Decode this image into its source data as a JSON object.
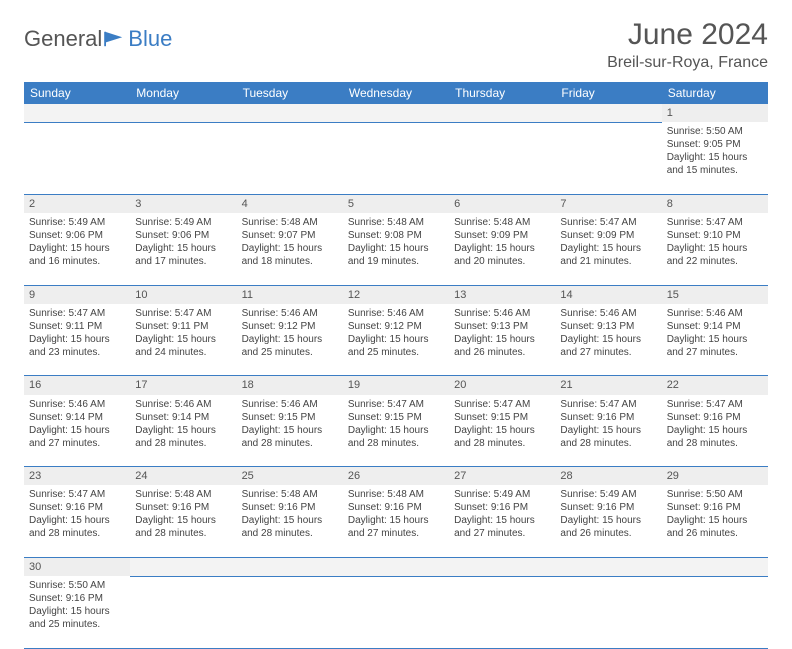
{
  "logo": {
    "text1": "General",
    "text2": "Blue"
  },
  "title": "June 2024",
  "location": "Breil-sur-Roya, France",
  "colors": {
    "header_bg": "#3b7dc4",
    "header_text": "#ffffff",
    "daynum_bg": "#eeeeee",
    "text": "#444444",
    "border": "#3b7dc4"
  },
  "weekdays": [
    "Sunday",
    "Monday",
    "Tuesday",
    "Wednesday",
    "Thursday",
    "Friday",
    "Saturday"
  ],
  "weeks": [
    [
      null,
      null,
      null,
      null,
      null,
      null,
      {
        "d": "1",
        "sr": "5:50 AM",
        "ss": "9:05 PM",
        "dl": "15 hours and 15 minutes."
      }
    ],
    [
      {
        "d": "2",
        "sr": "5:49 AM",
        "ss": "9:06 PM",
        "dl": "15 hours and 16 minutes."
      },
      {
        "d": "3",
        "sr": "5:49 AM",
        "ss": "9:06 PM",
        "dl": "15 hours and 17 minutes."
      },
      {
        "d": "4",
        "sr": "5:48 AM",
        "ss": "9:07 PM",
        "dl": "15 hours and 18 minutes."
      },
      {
        "d": "5",
        "sr": "5:48 AM",
        "ss": "9:08 PM",
        "dl": "15 hours and 19 minutes."
      },
      {
        "d": "6",
        "sr": "5:48 AM",
        "ss": "9:09 PM",
        "dl": "15 hours and 20 minutes."
      },
      {
        "d": "7",
        "sr": "5:47 AM",
        "ss": "9:09 PM",
        "dl": "15 hours and 21 minutes."
      },
      {
        "d": "8",
        "sr": "5:47 AM",
        "ss": "9:10 PM",
        "dl": "15 hours and 22 minutes."
      }
    ],
    [
      {
        "d": "9",
        "sr": "5:47 AM",
        "ss": "9:11 PM",
        "dl": "15 hours and 23 minutes."
      },
      {
        "d": "10",
        "sr": "5:47 AM",
        "ss": "9:11 PM",
        "dl": "15 hours and 24 minutes."
      },
      {
        "d": "11",
        "sr": "5:46 AM",
        "ss": "9:12 PM",
        "dl": "15 hours and 25 minutes."
      },
      {
        "d": "12",
        "sr": "5:46 AM",
        "ss": "9:12 PM",
        "dl": "15 hours and 25 minutes."
      },
      {
        "d": "13",
        "sr": "5:46 AM",
        "ss": "9:13 PM",
        "dl": "15 hours and 26 minutes."
      },
      {
        "d": "14",
        "sr": "5:46 AM",
        "ss": "9:13 PM",
        "dl": "15 hours and 27 minutes."
      },
      {
        "d": "15",
        "sr": "5:46 AM",
        "ss": "9:14 PM",
        "dl": "15 hours and 27 minutes."
      }
    ],
    [
      {
        "d": "16",
        "sr": "5:46 AM",
        "ss": "9:14 PM",
        "dl": "15 hours and 27 minutes."
      },
      {
        "d": "17",
        "sr": "5:46 AM",
        "ss": "9:14 PM",
        "dl": "15 hours and 28 minutes."
      },
      {
        "d": "18",
        "sr": "5:46 AM",
        "ss": "9:15 PM",
        "dl": "15 hours and 28 minutes."
      },
      {
        "d": "19",
        "sr": "5:47 AM",
        "ss": "9:15 PM",
        "dl": "15 hours and 28 minutes."
      },
      {
        "d": "20",
        "sr": "5:47 AM",
        "ss": "9:15 PM",
        "dl": "15 hours and 28 minutes."
      },
      {
        "d": "21",
        "sr": "5:47 AM",
        "ss": "9:16 PM",
        "dl": "15 hours and 28 minutes."
      },
      {
        "d": "22",
        "sr": "5:47 AM",
        "ss": "9:16 PM",
        "dl": "15 hours and 28 minutes."
      }
    ],
    [
      {
        "d": "23",
        "sr": "5:47 AM",
        "ss": "9:16 PM",
        "dl": "15 hours and 28 minutes."
      },
      {
        "d": "24",
        "sr": "5:48 AM",
        "ss": "9:16 PM",
        "dl": "15 hours and 28 minutes."
      },
      {
        "d": "25",
        "sr": "5:48 AM",
        "ss": "9:16 PM",
        "dl": "15 hours and 28 minutes."
      },
      {
        "d": "26",
        "sr": "5:48 AM",
        "ss": "9:16 PM",
        "dl": "15 hours and 27 minutes."
      },
      {
        "d": "27",
        "sr": "5:49 AM",
        "ss": "9:16 PM",
        "dl": "15 hours and 27 minutes."
      },
      {
        "d": "28",
        "sr": "5:49 AM",
        "ss": "9:16 PM",
        "dl": "15 hours and 26 minutes."
      },
      {
        "d": "29",
        "sr": "5:50 AM",
        "ss": "9:16 PM",
        "dl": "15 hours and 26 minutes."
      }
    ],
    [
      {
        "d": "30",
        "sr": "5:50 AM",
        "ss": "9:16 PM",
        "dl": "15 hours and 25 minutes."
      },
      null,
      null,
      null,
      null,
      null,
      null
    ]
  ],
  "labels": {
    "sunrise": "Sunrise:",
    "sunset": "Sunset:",
    "daylight": "Daylight:"
  }
}
